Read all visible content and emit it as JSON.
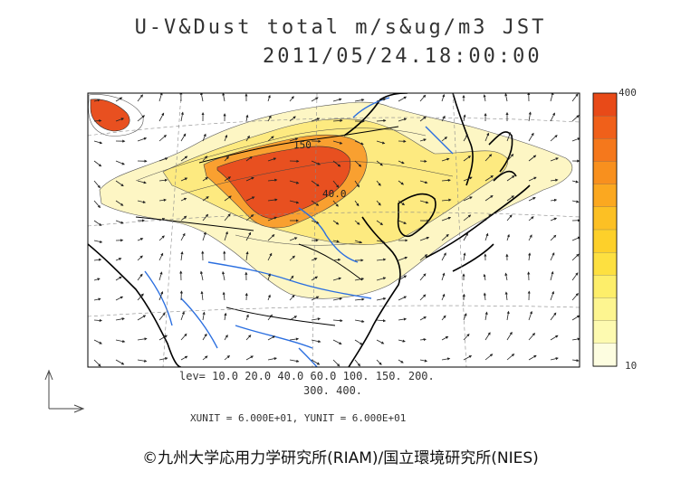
{
  "title": {
    "line1": "U-V&Dust total m/s&ug/m3 JST",
    "line2": "2011/05/24.18:00:00"
  },
  "legend": {
    "max_label": "400",
    "min_label": "10",
    "colors": [
      "#fdfde0",
      "#fdfab0",
      "#fdf590",
      "#fdee6a",
      "#fde040",
      "#fdd02a",
      "#fcc024",
      "#fba820",
      "#f8901e",
      "#f5781c",
      "#f0601a",
      "#e84a18"
    ]
  },
  "contour_labels": {
    "a": "150",
    "b": "40.0"
  },
  "levels": {
    "line1": "lev= 10.0 20.0 40.0 60.0 100. 150. 200.",
    "line2": "300. 400."
  },
  "units": "XUNIT = 6.000E+01, YUNIT = 6.000E+01",
  "credit": "©九州大学応用力学研究所(RIAM)/国立環境研究所(NIES)",
  "colors": {
    "dust_light": "#fdf6b8",
    "dust_mid": "#fde26a",
    "dust_orange": "#f8901e",
    "dust_red": "#e84a18",
    "rivers": "#2b6fe0",
    "coast": "#000000"
  }
}
